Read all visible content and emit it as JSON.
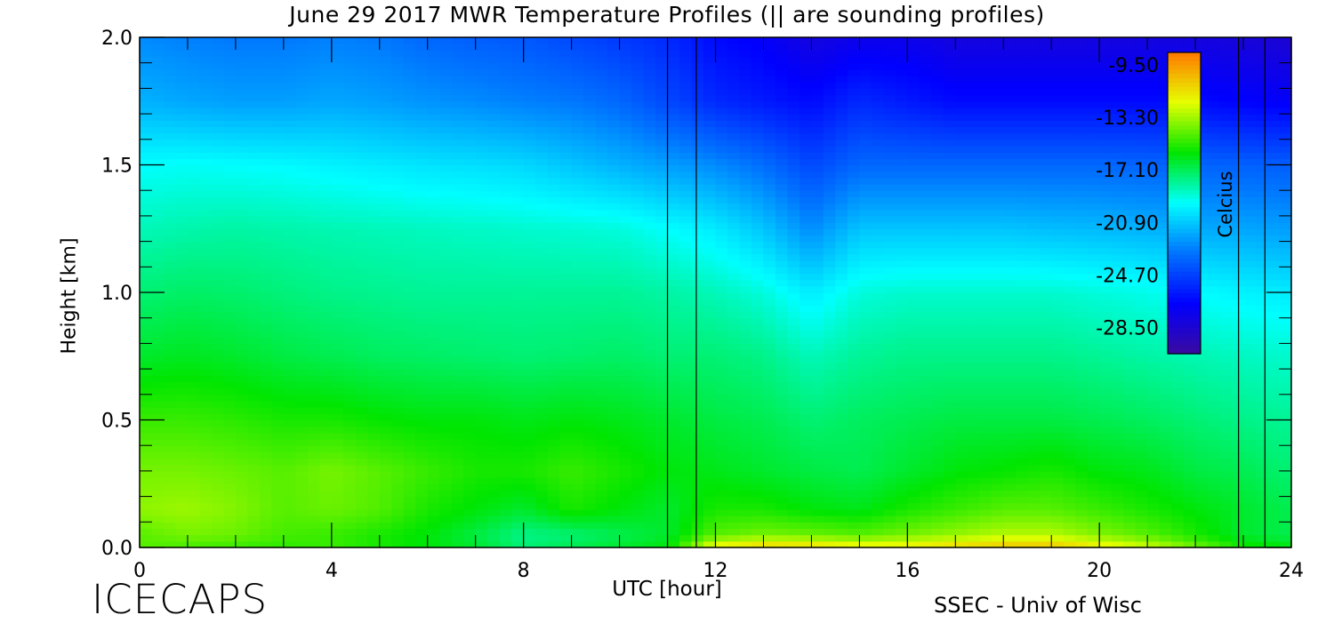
{
  "chart_data": {
    "type": "heatmap",
    "title": "June 29 2017 MWR Temperature Profiles (||  are sounding profiles)",
    "xlabel": "UTC [hour]",
    "ylabel": "Height [km]",
    "xlim": [
      0,
      24
    ],
    "ylim": [
      0,
      2.0
    ],
    "x_ticks": [
      "0",
      "4",
      "8",
      "12",
      "16",
      "20",
      "24"
    ],
    "y_ticks": [
      "0.0",
      "0.5",
      "1.0",
      "1.5",
      "2.0"
    ],
    "colorbar": {
      "label": "Celcius",
      "range": [
        -30.4,
        -8.6
      ],
      "ticks": [
        "-9.50",
        "-13.30",
        "-17.10",
        "-20.90",
        "-24.70",
        "-28.50"
      ]
    },
    "sounding_times_hour": [
      11.0,
      11.6,
      22.9,
      23.45
    ],
    "gap_hours": [
      11.0,
      11.6
    ],
    "x_hours": [
      0,
      1,
      2,
      3,
      4,
      5,
      6,
      7,
      8,
      9,
      10,
      11,
      12,
      13,
      14,
      15,
      16,
      17,
      18,
      19,
      20,
      21,
      22,
      23,
      24
    ],
    "heights_km": [
      0.0,
      0.05,
      0.15,
      0.3,
      0.5,
      0.75,
      1.0,
      1.25,
      1.5,
      1.75,
      2.0
    ],
    "temperature_c": [
      [
        -14.5,
        -14.8,
        -15.0,
        -15.2,
        -15.0,
        -15.5,
        -16.0,
        -16.5,
        -17.5,
        -17.0,
        -16.5,
        -16.0,
        -11.5,
        -10.8,
        -11.0,
        -11.5,
        -11.5,
        -11.0,
        -10.5,
        -10.5,
        -11.5,
        -12.5,
        -14.0,
        -15.5,
        -16.0
      ],
      [
        -14.5,
        -14.0,
        -14.2,
        -14.8,
        -15.0,
        -15.5,
        -16.0,
        -16.8,
        -17.8,
        -17.5,
        -17.0,
        -16.5,
        -14.5,
        -14.0,
        -14.2,
        -14.5,
        -14.0,
        -13.5,
        -13.0,
        -13.0,
        -13.8,
        -14.5,
        -15.5,
        -16.5,
        -17.0
      ],
      [
        -13.6,
        -13.4,
        -13.8,
        -14.5,
        -14.2,
        -14.6,
        -15.5,
        -16.0,
        -16.5,
        -15.5,
        -16.0,
        -16.5,
        -15.5,
        -15.5,
        -16.0,
        -16.2,
        -15.5,
        -15.0,
        -14.5,
        -14.5,
        -15.0,
        -15.5,
        -16.0,
        -16.5,
        -17.0
      ],
      [
        -14.0,
        -14.0,
        -14.2,
        -14.5,
        -14.0,
        -14.5,
        -15.0,
        -15.5,
        -15.5,
        -15.0,
        -15.5,
        -16.0,
        -16.2,
        -16.5,
        -16.8,
        -17.0,
        -16.5,
        -16.0,
        -15.8,
        -15.5,
        -16.0,
        -16.2,
        -16.8,
        -17.0,
        -17.5
      ],
      [
        -15.0,
        -15.0,
        -15.2,
        -15.5,
        -15.5,
        -15.8,
        -16.0,
        -16.0,
        -16.2,
        -16.0,
        -16.2,
        -16.5,
        -16.8,
        -17.0,
        -17.5,
        -17.2,
        -17.0,
        -16.8,
        -16.8,
        -16.8,
        -17.0,
        -17.2,
        -17.5,
        -17.8,
        -18.0
      ],
      [
        -16.5,
        -16.3,
        -16.5,
        -16.8,
        -17.0,
        -17.2,
        -17.3,
        -17.4,
        -17.5,
        -17.4,
        -17.3,
        -17.5,
        -17.5,
        -17.8,
        -18.5,
        -18.0,
        -17.8,
        -17.8,
        -17.8,
        -17.8,
        -18.0,
        -18.2,
        -18.4,
        -18.6,
        -18.8
      ],
      [
        -17.5,
        -17.3,
        -17.4,
        -17.6,
        -17.8,
        -17.9,
        -18.0,
        -18.0,
        -18.0,
        -18.0,
        -18.0,
        -18.2,
        -18.5,
        -19.0,
        -20.0,
        -19.0,
        -18.8,
        -18.8,
        -18.8,
        -18.8,
        -19.0,
        -19.2,
        -19.5,
        -19.8,
        -20.0
      ],
      [
        -18.5,
        -18.3,
        -18.2,
        -18.3,
        -18.4,
        -18.5,
        -18.6,
        -18.7,
        -18.8,
        -18.9,
        -19.0,
        -19.5,
        -20.0,
        -21.0,
        -22.5,
        -21.0,
        -21.0,
        -21.0,
        -21.0,
        -21.2,
        -21.3,
        -21.5,
        -21.7,
        -21.8,
        -22.0
      ],
      [
        -19.5,
        -19.4,
        -19.5,
        -19.6,
        -19.8,
        -20.0,
        -20.2,
        -20.3,
        -20.5,
        -21.0,
        -21.5,
        -22.0,
        -22.5,
        -23.3,
        -24.5,
        -23.5,
        -23.5,
        -23.5,
        -23.5,
        -23.5,
        -23.5,
        -23.6,
        -23.6,
        -23.7,
        -23.8
      ],
      [
        -21.5,
        -21.8,
        -22.0,
        -22.0,
        -21.8,
        -22.0,
        -22.3,
        -22.5,
        -22.8,
        -23.0,
        -23.5,
        -24.5,
        -25.5,
        -26.0,
        -26.5,
        -25.5,
        -26.0,
        -26.5,
        -26.5,
        -26.5,
        -26.5,
        -26.5,
        -26.5,
        -26.8,
        -27.0
      ],
      [
        -22.5,
        -22.8,
        -23.0,
        -23.0,
        -22.8,
        -23.0,
        -23.5,
        -23.8,
        -24.0,
        -24.5,
        -25.0,
        -25.5,
        -26.5,
        -27.0,
        -28.0,
        -27.5,
        -27.5,
        -28.0,
        -28.0,
        -28.0,
        -28.0,
        -28.0,
        -28.0,
        -28.2,
        -28.5
      ]
    ]
  },
  "footer": {
    "logo": "ICECAPS",
    "credit": "SSEC - Univ of Wisc"
  },
  "colors": {
    "scale": [
      "#3a0aa0",
      "#0000ff",
      "#0073ff",
      "#00ffff",
      "#00e600",
      "#e6ff00",
      "#ff7800"
    ]
  }
}
